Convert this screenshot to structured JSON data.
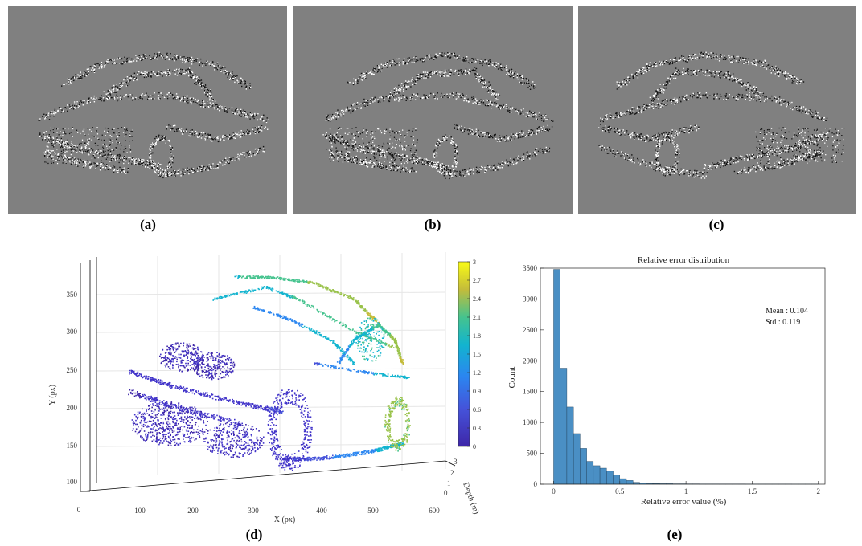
{
  "captions": {
    "a": "(a)",
    "b": "(b)",
    "c": "(c)",
    "d": "(d)",
    "e": "(e)"
  },
  "plot_3d": {
    "xlabel": "X (px)",
    "ylabel": "Y (px)",
    "zlabel": "Depth (m)",
    "x_ticks": [
      "0",
      "100",
      "200",
      "300",
      "400",
      "500",
      "600"
    ],
    "y_ticks": [
      "100",
      "150",
      "200",
      "250",
      "300",
      "350"
    ],
    "z_ticks": [
      "0",
      "1",
      "2",
      "3"
    ],
    "colorbar_ticks": [
      "3",
      "2.7",
      "2.4",
      "2.1",
      "1.8",
      "1.5",
      "1.2",
      "0.9",
      "0.6",
      "0.3",
      "0"
    ],
    "colors": {
      "low": "#3e26a8",
      "mid": "#1fa2d6",
      "high": "#f9fb15"
    }
  },
  "chart_data": {
    "type": "bar",
    "title": "Relative error distribution",
    "xlabel": "Relative error value (%)",
    "ylabel": "Count",
    "xlim": [
      -0.1,
      2.05
    ],
    "ylim": [
      0,
      3500
    ],
    "bin_width": 0.05,
    "x_ticks": [
      "0",
      "0.5",
      "1",
      "1.5",
      "2"
    ],
    "y_ticks": [
      "0",
      "500",
      "1000",
      "1500",
      "2000",
      "2500",
      "3000",
      "3500"
    ],
    "bins_start": 0,
    "values": [
      3480,
      1880,
      1250,
      820,
      580,
      370,
      300,
      260,
      210,
      150,
      90,
      60,
      30,
      20,
      12,
      10,
      8,
      8,
      6,
      6,
      5,
      5,
      4,
      4,
      4,
      3,
      3,
      3,
      3,
      2,
      2,
      2,
      2,
      2,
      2,
      2,
      1,
      1,
      1,
      1
    ],
    "annotations": {
      "mean": "Mean : 0.104",
      "std": "Std : 0.119"
    },
    "bar_color": "#4a8fc4"
  }
}
